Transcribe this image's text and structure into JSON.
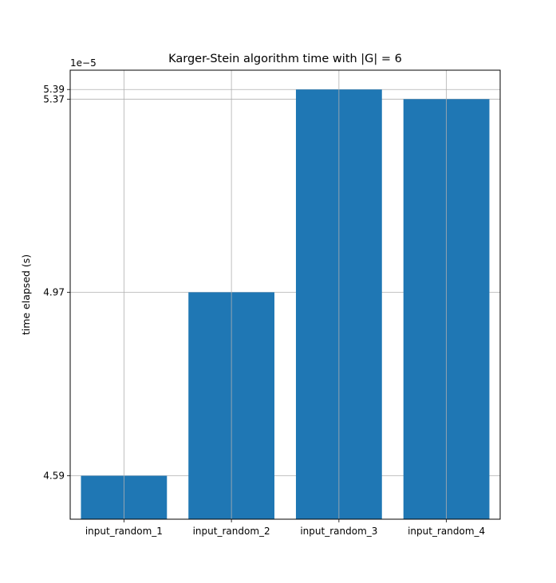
{
  "chart_data": {
    "type": "bar",
    "title": "Karger-Stein algorithm time with |G| = 6",
    "xlabel": "",
    "ylabel": "time elapsed (s)",
    "y_offset_label": "1e−5",
    "y_scale_factor": 1e-05,
    "categories": [
      "input_random_1",
      "input_random_2",
      "input_random_3",
      "input_random_4"
    ],
    "values": [
      4.59,
      4.97,
      5.39,
      5.37
    ],
    "ylim": [
      4.5,
      5.43
    ],
    "yticks": [
      4.59,
      4.97,
      5.37,
      5.39
    ],
    "ytick_labels": [
      "4.59",
      "4.97",
      "5.37",
      "5.39"
    ],
    "grid": true,
    "bar_color": "#1f77b4",
    "grid_color": "#b0b0b0"
  }
}
